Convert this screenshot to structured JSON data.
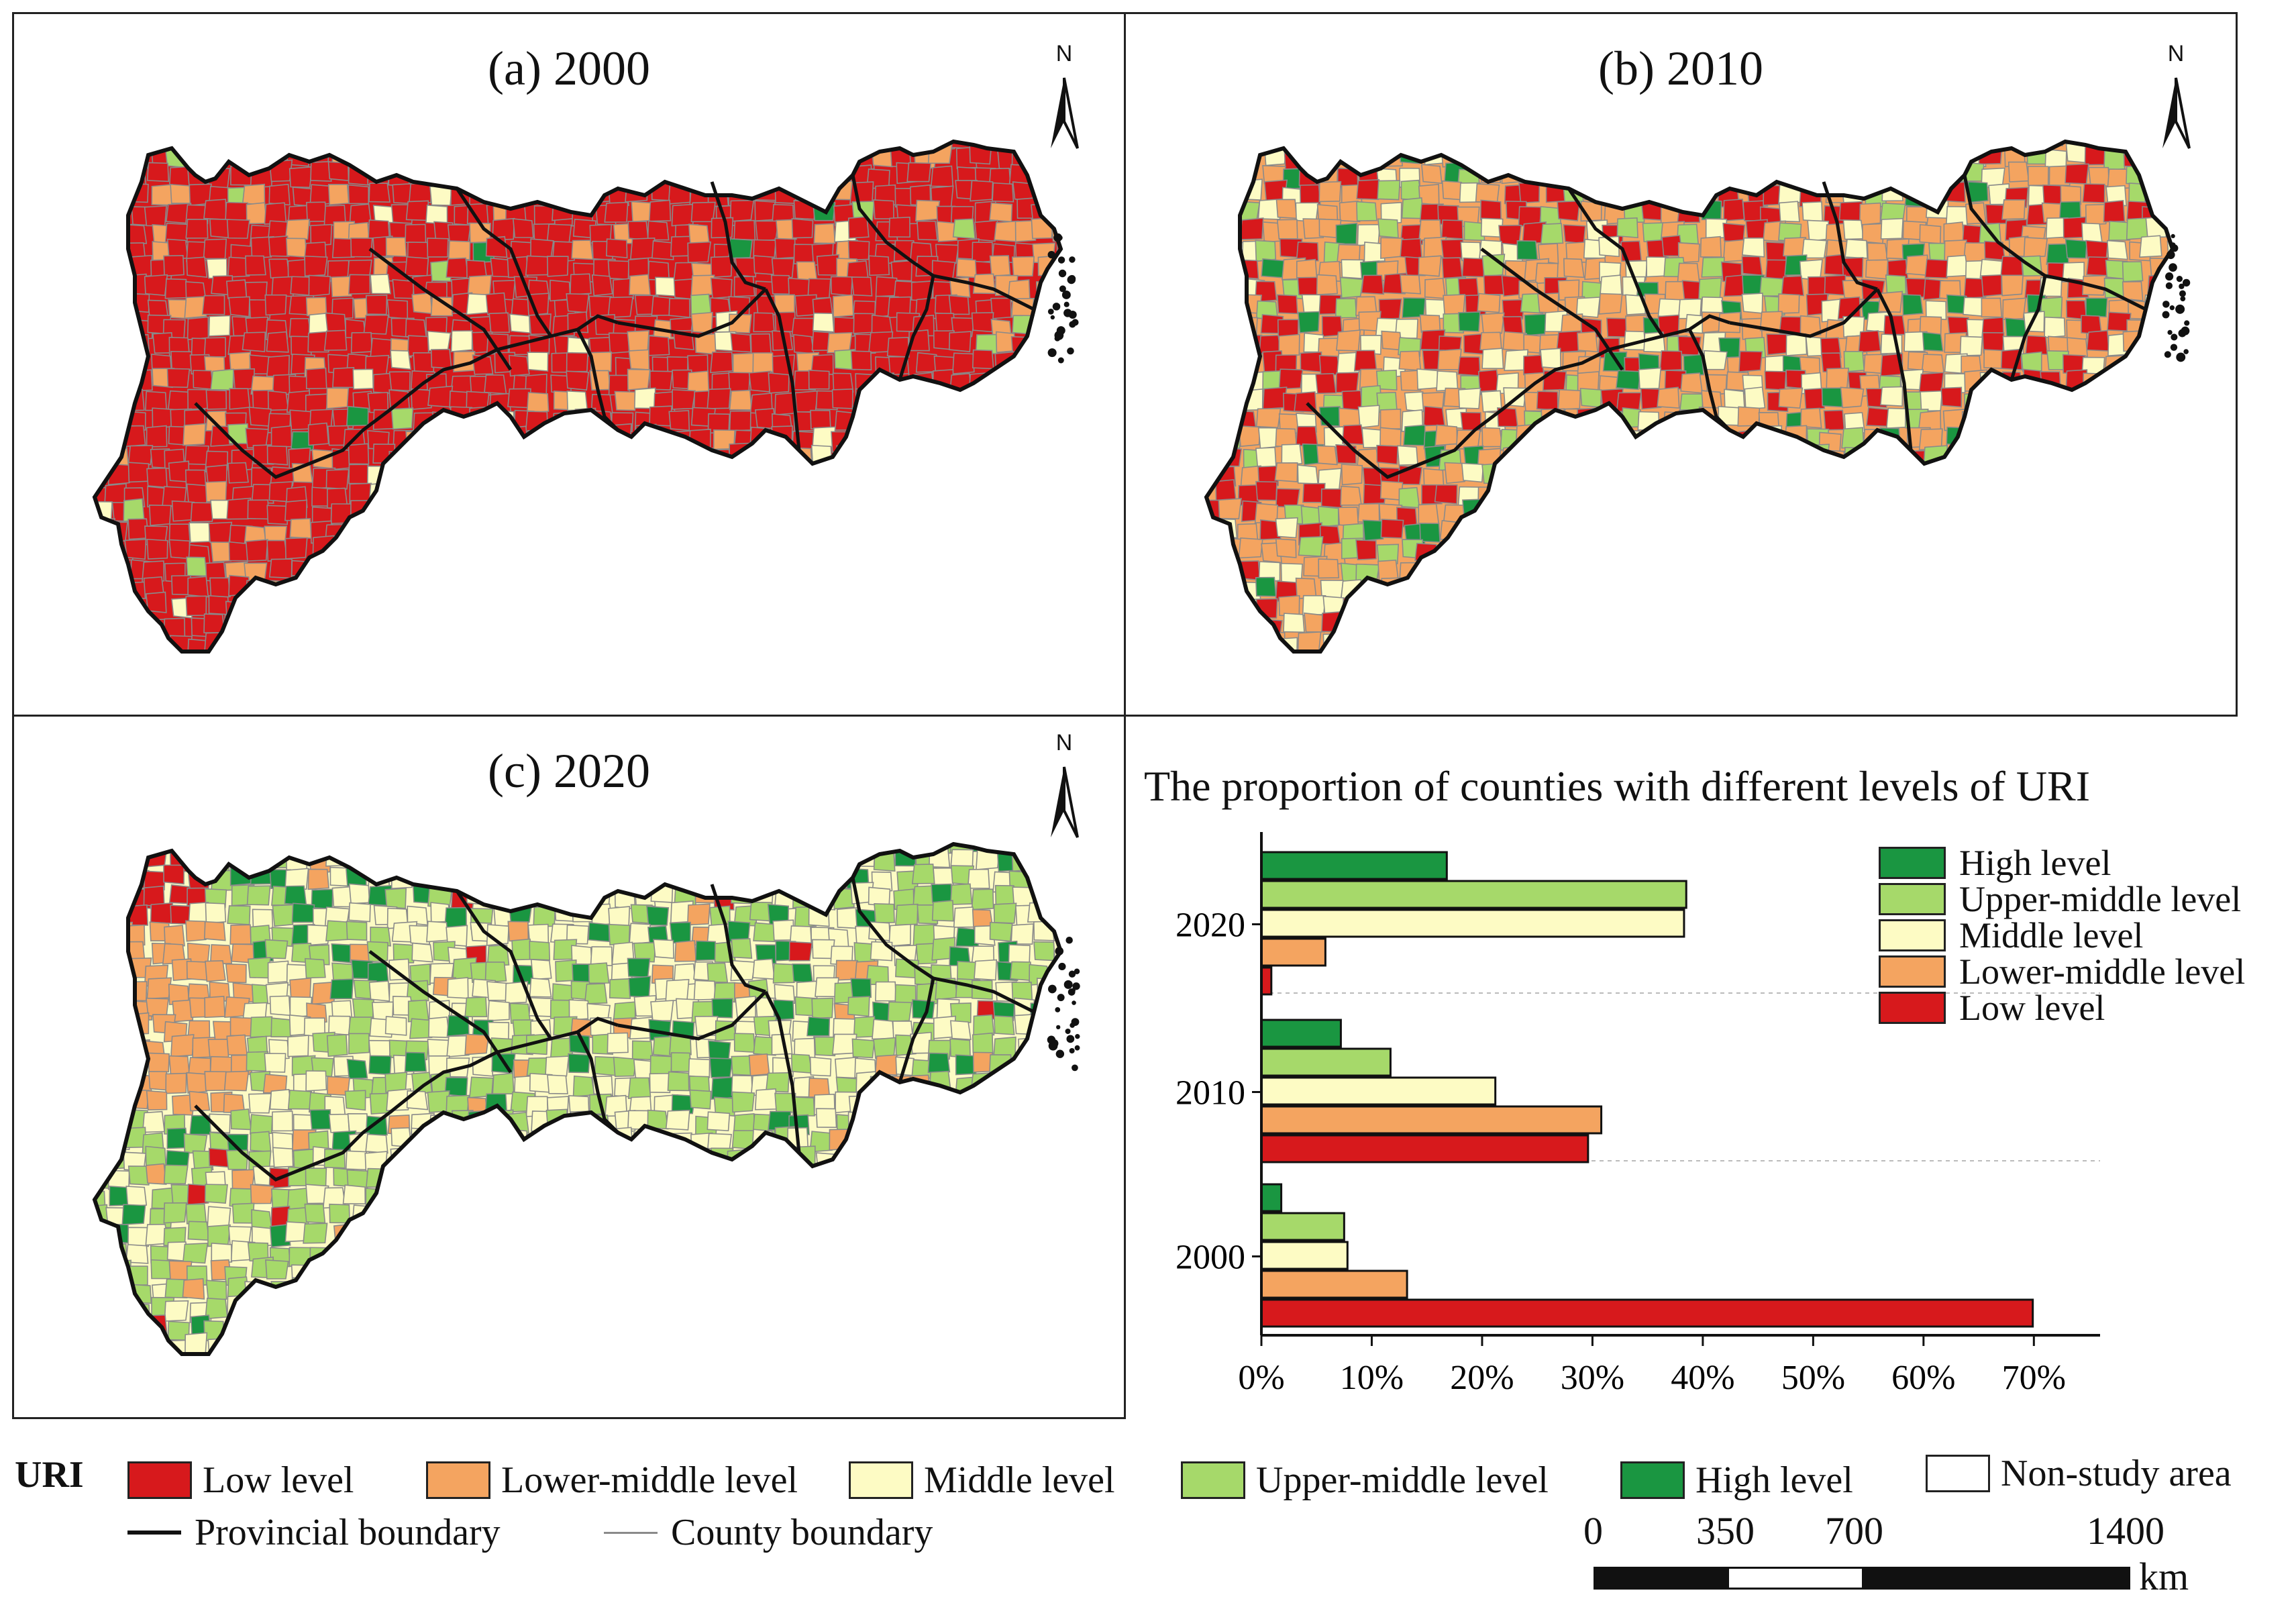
{
  "panels": [
    {
      "title": "(a) 2000"
    },
    {
      "title": "(b) 2010"
    },
    {
      "title": "(c) 2020"
    }
  ],
  "north_label": "N",
  "colors": {
    "low": "#d7191c",
    "lower_middle": "#f4a460",
    "middle": "#fdfbc4",
    "upper_middle": "#a6d96a",
    "high": "#1a9641",
    "county_line": "#8a8a8a",
    "province_line": "#111111"
  },
  "chart_data": {
    "type": "bar",
    "orientation": "horizontal",
    "title": "The proportion of counties with different levels of URI",
    "categories": [
      "2020",
      "2010",
      "2000"
    ],
    "series": [
      {
        "name": "High level",
        "values": [
          16.8,
          7.2,
          1.8
        ]
      },
      {
        "name": "Upper-middle level",
        "values": [
          38.5,
          11.7,
          7.5
        ]
      },
      {
        "name": "Middle level",
        "values": [
          38.3,
          21.2,
          7.8
        ]
      },
      {
        "name": "Lower-middle level",
        "values": [
          5.8,
          30.8,
          13.2
        ]
      },
      {
        "name": "Low level",
        "values": [
          0.9,
          29.6,
          69.9
        ]
      }
    ],
    "xlim": [
      0,
      76
    ],
    "xticks": [
      "0%",
      "10%",
      "20%",
      "30%",
      "40%",
      "50%",
      "60%",
      "70%"
    ],
    "xtick_values": [
      0,
      10,
      20,
      30,
      40,
      50,
      60,
      70
    ],
    "legend_position": "top-right"
  },
  "legend": {
    "title": "URI",
    "items": [
      {
        "label": "Low level",
        "key": "low"
      },
      {
        "label": "Lower-middle level",
        "key": "lower_middle"
      },
      {
        "label": "Middle level",
        "key": "middle"
      },
      {
        "label": "Upper-middle level",
        "key": "upper_middle"
      },
      {
        "label": "High level",
        "key": "high"
      },
      {
        "label": "Non-study area",
        "key": "none"
      }
    ],
    "provincial_boundary": "Provincial boundary",
    "county_boundary": "County boundary"
  },
  "scale_bar": {
    "ticks": [
      "0",
      "350",
      "700",
      "1400"
    ],
    "unit": "km"
  }
}
